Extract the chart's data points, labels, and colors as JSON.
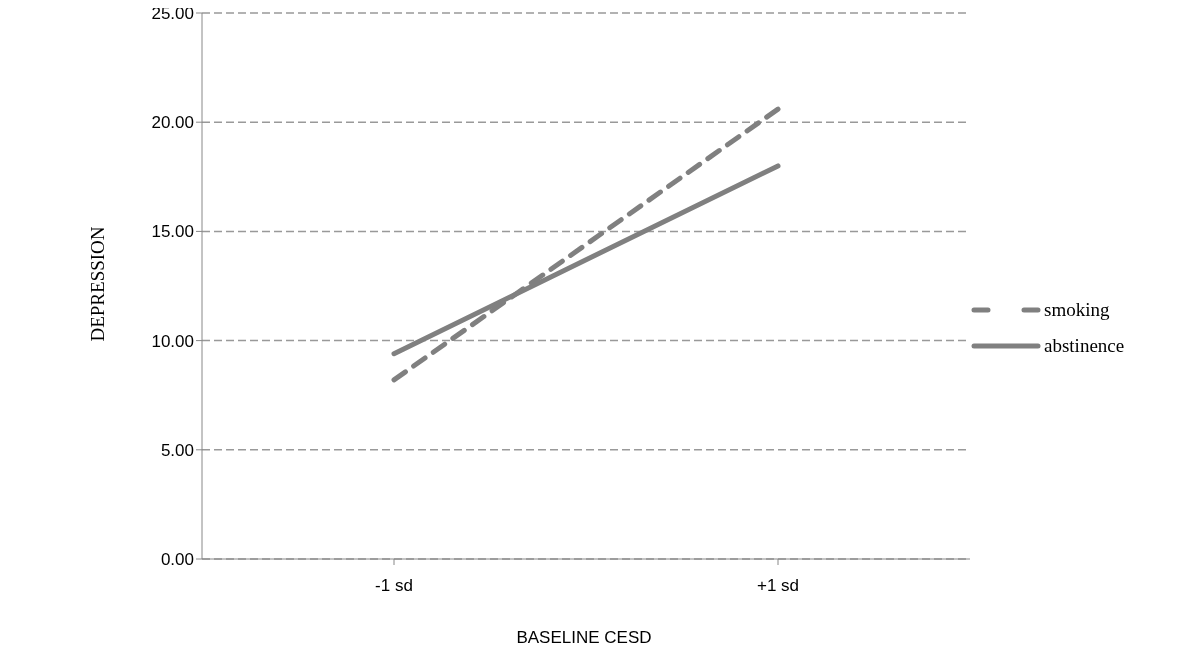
{
  "chart_data": {
    "type": "line",
    "xlabel": "BASELINE CESD",
    "ylabel": "DEPRESSION",
    "categories": [
      "-1 sd",
      "+1 sd"
    ],
    "series": [
      {
        "name": "smoking",
        "color": "#808080",
        "values": [
          8.2,
          20.6
        ],
        "line_style": "dashed"
      },
      {
        "name": "abstinence",
        "color": "#808080",
        "values": [
          9.4,
          18.0
        ],
        "line_style": "solid"
      }
    ],
    "ylim": [
      0,
      25
    ],
    "yticks": [
      {
        "value": 0,
        "label": "0.00"
      },
      {
        "value": 5,
        "label": "5.00"
      },
      {
        "value": 10,
        "label": "10.00"
      },
      {
        "value": 15,
        "label": "15.00"
      },
      {
        "value": 20,
        "label": "20.00"
      },
      {
        "value": 25,
        "label": "25.00"
      }
    ],
    "grid": "y",
    "legend": "right",
    "marker": "none"
  }
}
